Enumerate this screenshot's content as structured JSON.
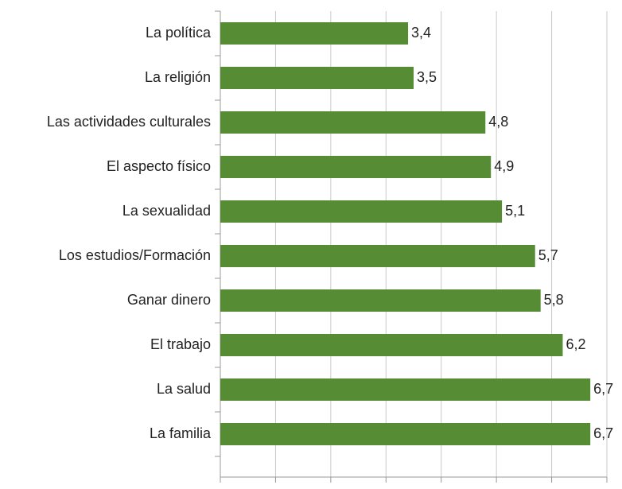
{
  "chart_data": {
    "type": "bar",
    "orientation": "horizontal",
    "categories": [
      "La política",
      "La religión",
      "Las actividades culturales",
      "El aspecto físico",
      "La sexualidad",
      "Los estudios/Formación",
      "Ganar dinero",
      "El trabajo",
      "La salud",
      "La familia"
    ],
    "values": [
      3.4,
      3.5,
      4.8,
      4.9,
      5.1,
      5.7,
      5.8,
      6.2,
      6.7,
      6.7
    ],
    "value_labels": [
      "3,4",
      "3,5",
      "4,8",
      "4,9",
      "5,1",
      "5,7",
      "5,8",
      "6,2",
      "6,7",
      "6,7"
    ],
    "color": "#568d34",
    "xlim": [
      0,
      7
    ],
    "xticks": [
      0,
      1,
      2,
      3,
      4,
      5,
      6,
      7
    ],
    "grid": true
  }
}
